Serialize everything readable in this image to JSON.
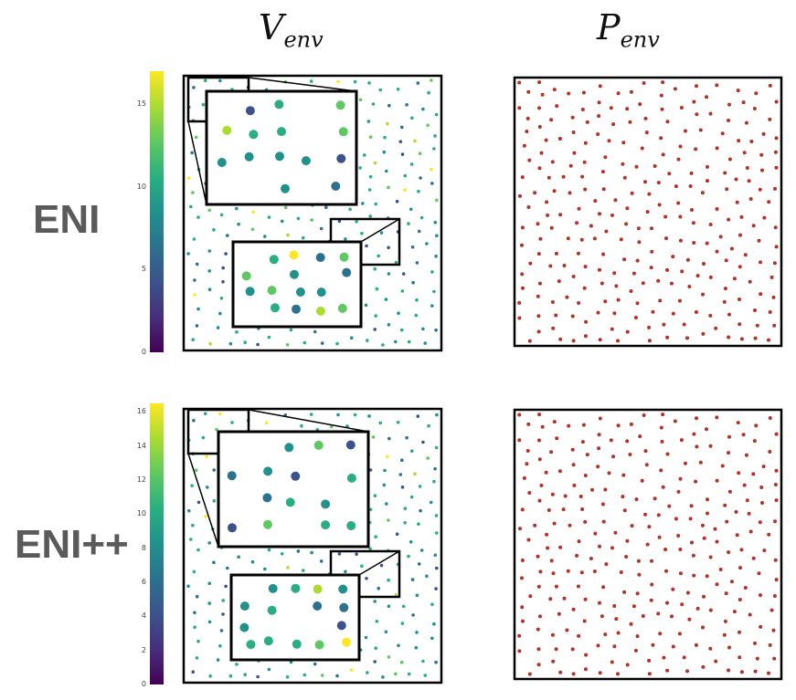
{
  "column_titles": {
    "left_main": "V",
    "left_sub": "env",
    "right_main": "P",
    "right_sub": "env"
  },
  "row_labels": {
    "top": "ENI",
    "bottom": "ENI++"
  },
  "colorbars": {
    "top": {
      "ticks": [
        "0",
        "5",
        "10",
        "15"
      ],
      "max": 17
    },
    "bottom": {
      "ticks": [
        "0",
        "2",
        "4",
        "6",
        "8",
        "10",
        "12",
        "14",
        "16"
      ],
      "max": 16.5
    }
  },
  "colors": {
    "particle_red": "#b03228",
    "frame": "#000000",
    "viridis": [
      "#440154",
      "#472d7b",
      "#3b528b",
      "#2c728e",
      "#21918c",
      "#28ae80",
      "#5ec962",
      "#addc30",
      "#fde725"
    ]
  }
}
